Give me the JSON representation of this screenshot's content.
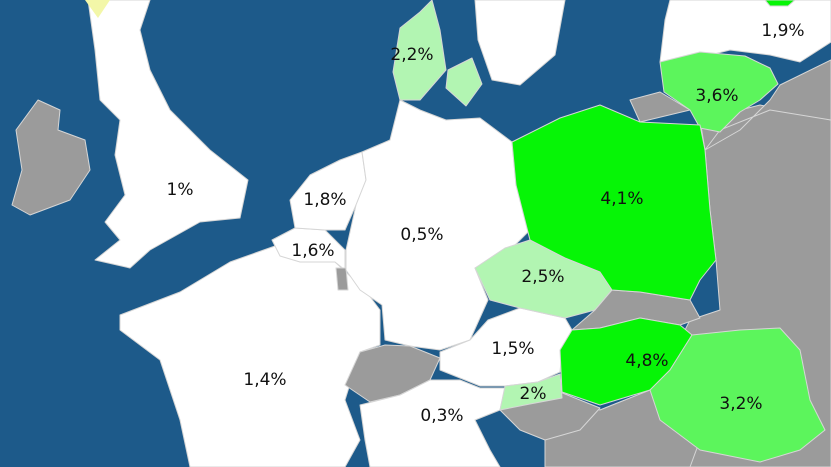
{
  "colors": {
    "sea": "#1d5a8a",
    "no_data": "#9b9b9b",
    "tier_low": "#ffffff",
    "tier_mid": "#b2f5b2",
    "tier_high": "#5cf55c",
    "tier_top": "#06f506",
    "border": "#d6d6d6"
  },
  "countries": [
    {
      "id": "ireland",
      "label": "",
      "tier": "no_data"
    },
    {
      "id": "united-kingdom",
      "label": "1%",
      "tier": "tier_low"
    },
    {
      "id": "france",
      "label": "1,4%",
      "tier": "tier_low"
    },
    {
      "id": "belgium",
      "label": "1,6%",
      "tier": "tier_low"
    },
    {
      "id": "netherlands",
      "label": "1,8%",
      "tier": "tier_low"
    },
    {
      "id": "luxembourg",
      "label": "",
      "tier": "no_data"
    },
    {
      "id": "germany",
      "label": "0,5%",
      "tier": "tier_low"
    },
    {
      "id": "switzerland",
      "label": "",
      "tier": "no_data"
    },
    {
      "id": "italy",
      "label": "0,3%",
      "tier": "tier_low"
    },
    {
      "id": "austria",
      "label": "1,5%",
      "tier": "tier_low"
    },
    {
      "id": "slovenia",
      "label": "2%",
      "tier": "tier_mid"
    },
    {
      "id": "czechia",
      "label": "2,5%",
      "tier": "tier_mid"
    },
    {
      "id": "denmark",
      "label": "2,2%",
      "tier": "tier_mid"
    },
    {
      "id": "sweden",
      "label": "",
      "tier": "tier_low"
    },
    {
      "id": "latvia",
      "label": "1,9%",
      "tier": "tier_low"
    },
    {
      "id": "lithuania",
      "label": "3,6%",
      "tier": "tier_high"
    },
    {
      "id": "poland",
      "label": "4,1%",
      "tier": "tier_top"
    },
    {
      "id": "slovakia",
      "label": "",
      "tier": "no_data"
    },
    {
      "id": "hungary",
      "label": "4,8%",
      "tier": "tier_top"
    },
    {
      "id": "romania",
      "label": "3,2%",
      "tier": "tier_high"
    },
    {
      "id": "croatia",
      "label": "",
      "tier": "no_data"
    },
    {
      "id": "belarus",
      "label": "",
      "tier": "no_data"
    },
    {
      "id": "kaliningrad",
      "label": "",
      "tier": "no_data"
    },
    {
      "id": "ukraine",
      "label": "",
      "tier": "no_data"
    },
    {
      "id": "balkans",
      "label": "",
      "tier": "no_data"
    },
    {
      "id": "estonia",
      "label": "",
      "tier": "tier_top"
    }
  ]
}
